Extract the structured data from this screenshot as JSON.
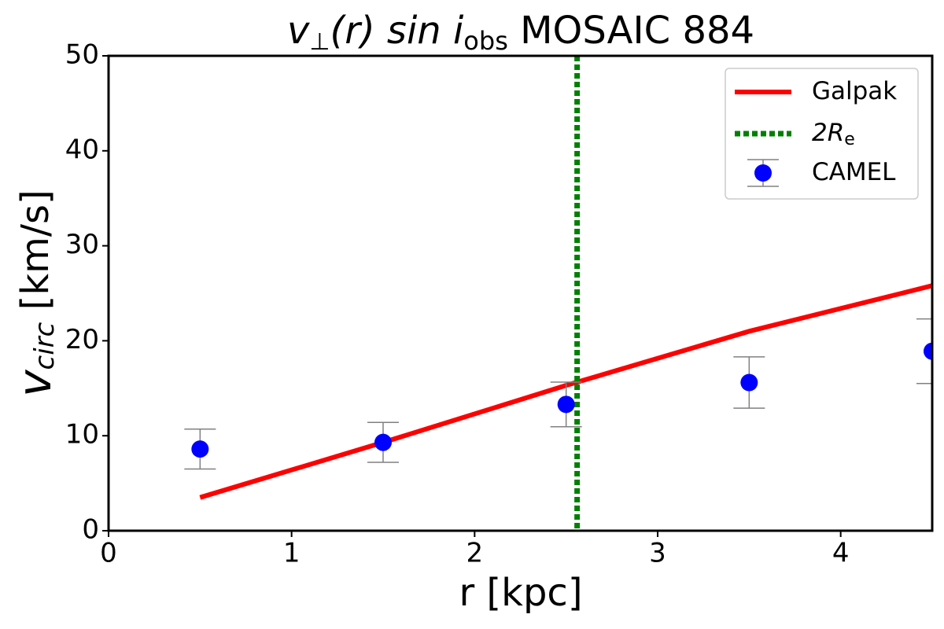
{
  "chart_data": {
    "type": "line",
    "title": [
      "v",
      "⊥",
      "(r) sin ",
      "i",
      "obs",
      " MOSAIC 884"
    ],
    "xlabel": "r [kpc]",
    "ylabel": [
      "v",
      "circ",
      " [km/s]"
    ],
    "xlim": [
      0,
      4.5
    ],
    "ylim": [
      0,
      50
    ],
    "xticks": [
      0,
      1,
      2,
      3,
      4
    ],
    "yticks": [
      0,
      10,
      20,
      30,
      40,
      50
    ],
    "grid": false,
    "legend": "upper right",
    "series": [
      {
        "name": "Galpak",
        "color": "#ff0000",
        "style": "solid",
        "x": [
          0.5,
          1.5,
          2.5,
          3.5,
          4.5
        ],
        "values": [
          3.5,
          9.3,
          15.3,
          21.0,
          25.8
        ]
      },
      {
        "name": "2R",
        "name_sub": "e",
        "color": "#008000",
        "style": "dotted",
        "vline": 2.56
      },
      {
        "name": "CAMEL",
        "color": "#0000ff",
        "style": "marker",
        "error_color": "#808080",
        "x": [
          0.5,
          1.5,
          2.5,
          3.5,
          4.5
        ],
        "values": [
          8.6,
          9.3,
          13.3,
          15.6,
          18.9
        ],
        "errors": [
          2.1,
          2.1,
          2.35,
          2.7,
          3.4
        ]
      }
    ]
  }
}
